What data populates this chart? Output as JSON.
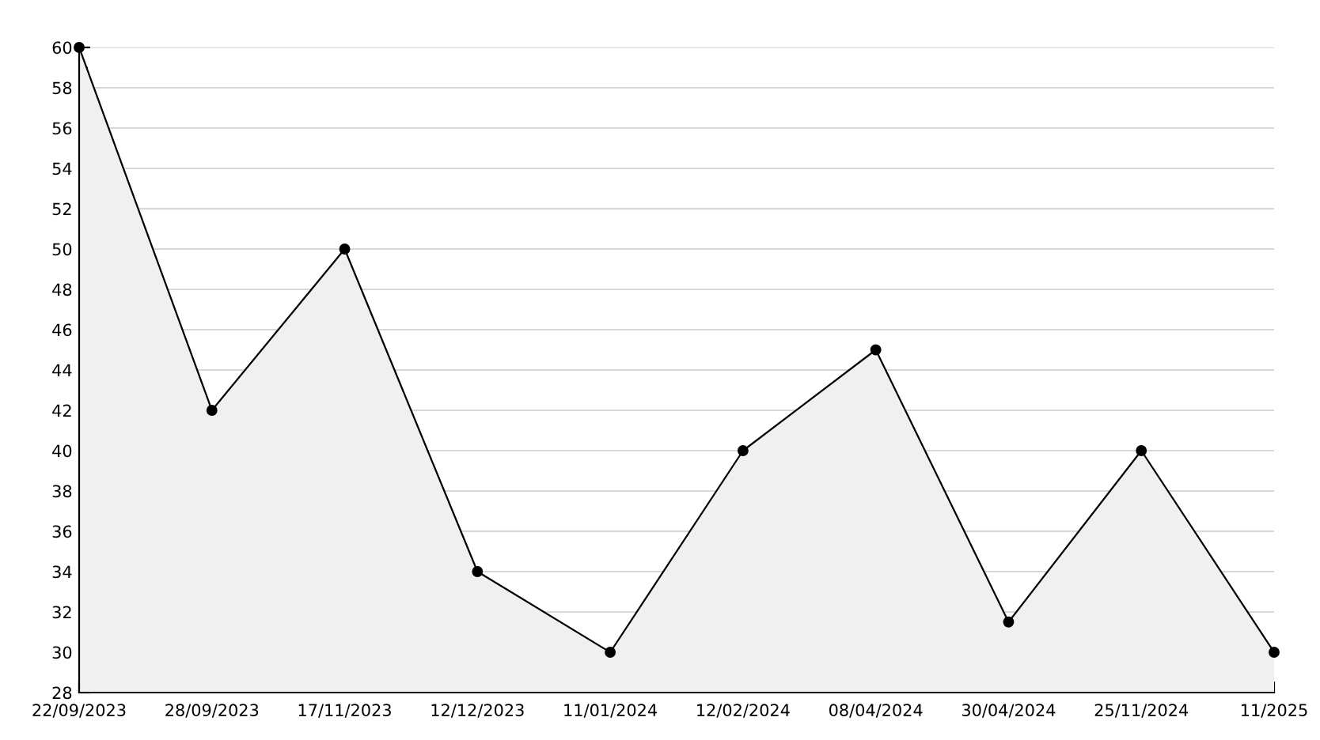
{
  "chart_data": {
    "type": "area",
    "categories": [
      "22/09/2023",
      "28/09/2023",
      "17/11/2023",
      "12/12/2023",
      "11/01/2024",
      "12/02/2024",
      "08/04/2024",
      "30/04/2024",
      "25/11/2024",
      "11/2025"
    ],
    "series": [
      {
        "color": "#f0f0f0",
        "values": [
          60,
          42,
          50,
          34,
          30,
          40,
          45,
          31.5,
          40,
          30
        ]
      }
    ],
    "ylim": [
      28,
      60
    ],
    "yticks": [
      28,
      30,
      32,
      34,
      36,
      38,
      40,
      42,
      44,
      46,
      48,
      50,
      52,
      54,
      56,
      58,
      60
    ],
    "grid": "y",
    "marker": "circle",
    "line_style": "solid"
  }
}
